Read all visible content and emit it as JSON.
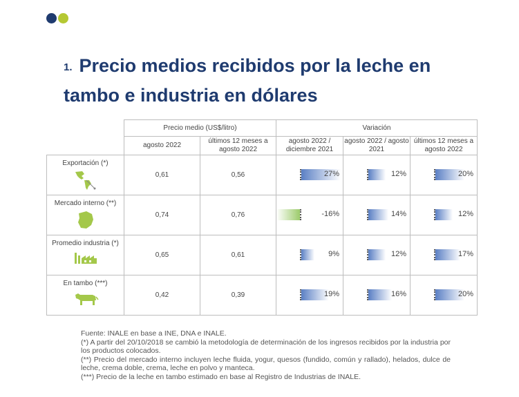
{
  "brand": {
    "dot1_color": "#1f3b6f",
    "dot2_color": "#b5c833"
  },
  "title": {
    "number": "1.",
    "text": "Precio medios recibidos por la leche en tambo e industria en dólares"
  },
  "table": {
    "group_price": "Precio medio (US$/litro)",
    "group_variation": "Variación",
    "col_price_1": "agosto 2022",
    "col_price_2": "últimos 12 meses a agosto 2022",
    "col_var_1": "agosto 2022 / diciembre 2021",
    "col_var_2": "agosto 2022 / agosto 2021",
    "col_var_3": "últimos 12 meses a agosto 2022",
    "colors": {
      "positive_bar": "#5a7fc4",
      "negative_bar": "#9ccb6b",
      "value_text": "#1f5fa8",
      "icon": "#a4c84a"
    },
    "rows": [
      {
        "label": "Exportación (*)",
        "icon": "americas-map-icon",
        "price_1": "0,61",
        "price_2": "0,56",
        "var": [
          {
            "text": "27%",
            "value": 27
          },
          {
            "text": "12%",
            "value": 12
          },
          {
            "text": "20%",
            "value": 20
          }
        ]
      },
      {
        "label": "Mercado interno (**)",
        "icon": "uruguay-map-icon",
        "price_1": "0,74",
        "price_2": "0,76",
        "var": [
          {
            "text": "-16%",
            "value": -16
          },
          {
            "text": "14%",
            "value": 14
          },
          {
            "text": "12%",
            "value": 12
          }
        ]
      },
      {
        "label": "Promedio industria (*)",
        "icon": "factory-icon",
        "price_1": "0,65",
        "price_2": "0,61",
        "var": [
          {
            "text": "9%",
            "value": 9
          },
          {
            "text": "12%",
            "value": 12
          },
          {
            "text": "17%",
            "value": 17
          }
        ]
      },
      {
        "label": "En tambo (***)",
        "icon": "cow-icon",
        "price_1": "0,42",
        "price_2": "0,39",
        "var": [
          {
            "text": "19%",
            "value": 19
          },
          {
            "text": "16%",
            "value": 16
          },
          {
            "text": "20%",
            "value": 20
          }
        ]
      }
    ]
  },
  "notes": {
    "source": "Fuente: INALE en base a INE, DNA e INALE.",
    "note1": "(*) A partir del 20/10/2018 se cambió la metodología de determinación de los ingresos recibidos por la industria por los productos colocados.",
    "note2": "(**) Precio del mercado interno incluyen leche fluida, yogur, quesos (fundido, común y rallado), helados, dulce de leche, crema doble, crema, leche en polvo y manteca.",
    "note3": "(***) Precio de la leche en tambo estimado en base al Registro de Industrias de INALE."
  }
}
